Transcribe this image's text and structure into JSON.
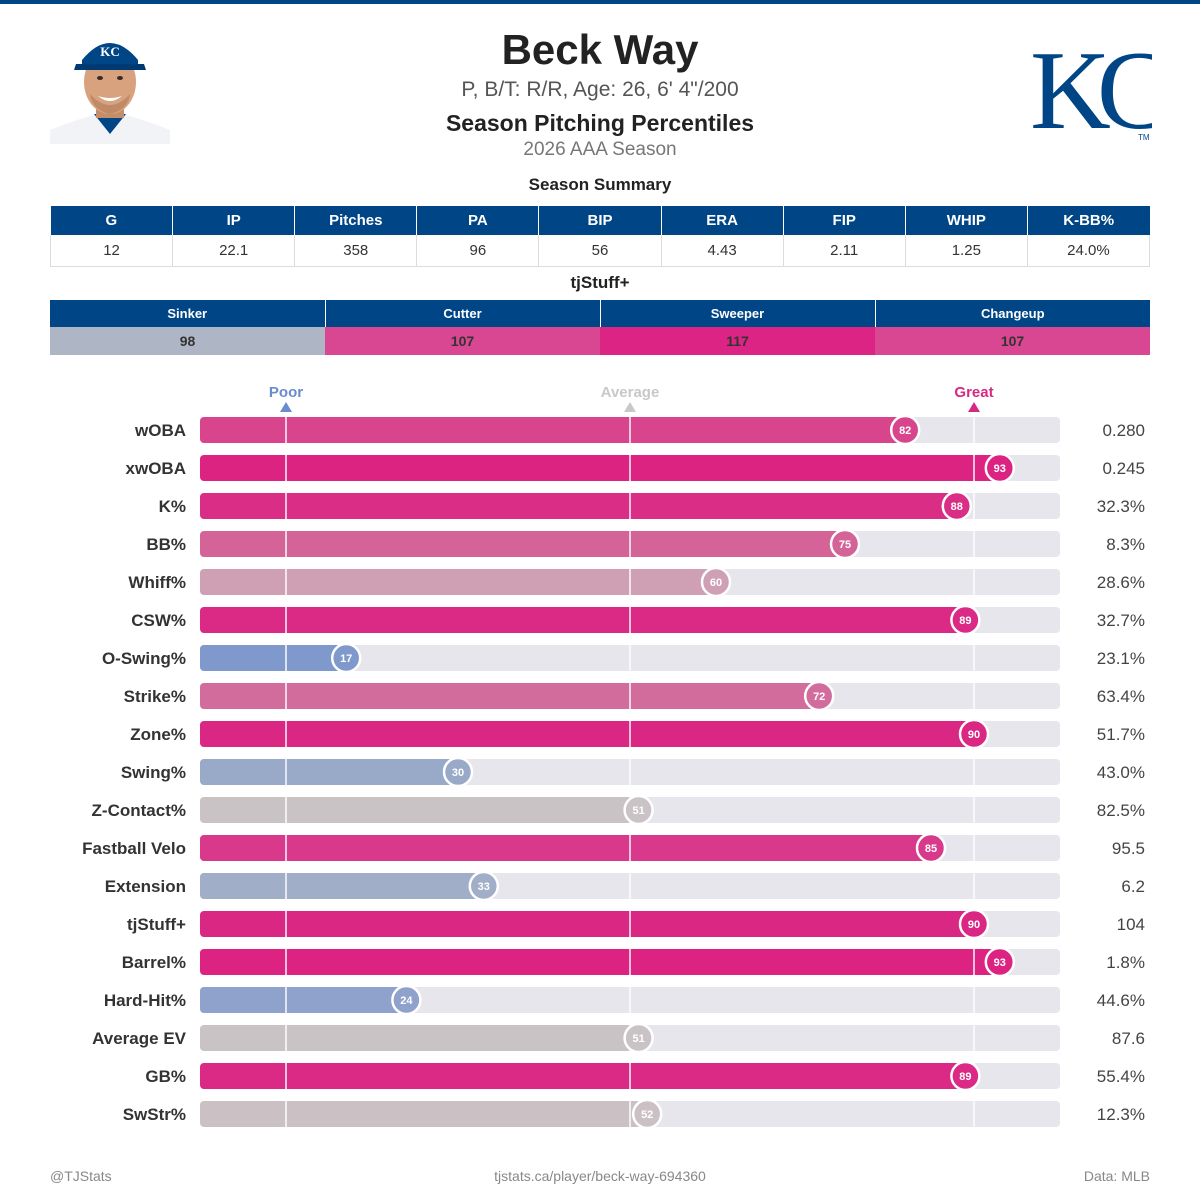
{
  "header": {
    "name": "Beck Way",
    "meta": "P, B/T: R/R, Age: 26, 6' 4\"/200",
    "report_title": "Season Pitching Percentiles",
    "season": "2026 AAA Season"
  },
  "team": {
    "logo_text": "KC",
    "primary_color": "#004687"
  },
  "summary": {
    "title": "Season Summary",
    "columns": [
      "G",
      "IP",
      "Pitches",
      "PA",
      "BIP",
      "ERA",
      "FIP",
      "WHIP",
      "K-BB%"
    ],
    "values": [
      "12",
      "22.1",
      "358",
      "96",
      "56",
      "4.43",
      "2.11",
      "1.25",
      "24.0%"
    ]
  },
  "tjstuff": {
    "title": "tjStuff+",
    "pitches": [
      {
        "name": "Sinker",
        "value": "98",
        "color": "#aeb6c6"
      },
      {
        "name": "Cutter",
        "value": "107",
        "color": "#d94692"
      },
      {
        "name": "Sweeper",
        "value": "117",
        "color": "#db2483"
      },
      {
        "name": "Changeup",
        "value": "107",
        "color": "#d94692"
      }
    ]
  },
  "chart_data": {
    "type": "bar",
    "title": "",
    "x_range": [
      0,
      100
    ],
    "markers": [
      {
        "label": "Poor",
        "value": 10,
        "color": "#6a8bd0"
      },
      {
        "label": "Average",
        "value": 50,
        "color": "#c8c8c8"
      },
      {
        "label": "Great",
        "value": 90,
        "color": "#d42a83"
      }
    ],
    "rows": [
      {
        "label": "wOBA",
        "percentile": 82,
        "value": "0.280",
        "color": "#d9458d"
      },
      {
        "label": "xwOBA",
        "percentile": 93,
        "value": "0.245",
        "color": "#dc2382"
      },
      {
        "label": "K%",
        "percentile": 88,
        "value": "32.3%",
        "color": "#da2d86"
      },
      {
        "label": "BB%",
        "percentile": 75,
        "value": "8.3%",
        "color": "#d46397"
      },
      {
        "label": "Whiff%",
        "percentile": 60,
        "value": "28.6%",
        "color": "#cfa0b4"
      },
      {
        "label": "CSW%",
        "percentile": 89,
        "value": "32.7%",
        "color": "#da2a85"
      },
      {
        "label": "O-Swing%",
        "percentile": 17,
        "value": "23.1%",
        "color": "#7f99cc"
      },
      {
        "label": "Strike%",
        "percentile": 72,
        "value": "63.4%",
        "color": "#d26c9c"
      },
      {
        "label": "Zone%",
        "percentile": 90,
        "value": "51.7%",
        "color": "#db2784"
      },
      {
        "label": "Swing%",
        "percentile": 30,
        "value": "43.0%",
        "color": "#99a9c8"
      },
      {
        "label": "Z-Contact%",
        "percentile": 51,
        "value": "82.5%",
        "color": "#c9c3c6"
      },
      {
        "label": "Fastball Velo",
        "percentile": 85,
        "value": "95.5",
        "color": "#d9398a"
      },
      {
        "label": "Extension",
        "percentile": 33,
        "value": "6.2",
        "color": "#a0aec8"
      },
      {
        "label": "tjStuff+",
        "percentile": 90,
        "value": "104",
        "color": "#db2784"
      },
      {
        "label": "Barrel%",
        "percentile": 93,
        "value": "1.8%",
        "color": "#dc2382"
      },
      {
        "label": "Hard-Hit%",
        "percentile": 24,
        "value": "44.6%",
        "color": "#8ea2cc"
      },
      {
        "label": "Average EV",
        "percentile": 51,
        "value": "87.6",
        "color": "#c9c3c6"
      },
      {
        "label": "GB%",
        "percentile": 89,
        "value": "55.4%",
        "color": "#da2a85"
      },
      {
        "label": "SwStr%",
        "percentile": 52,
        "value": "12.3%",
        "color": "#cbc1c5"
      }
    ]
  },
  "footer": {
    "left": "@TJStats",
    "center": "tjstats.ca/player/beck-way-694360",
    "right": "Data: MLB"
  }
}
